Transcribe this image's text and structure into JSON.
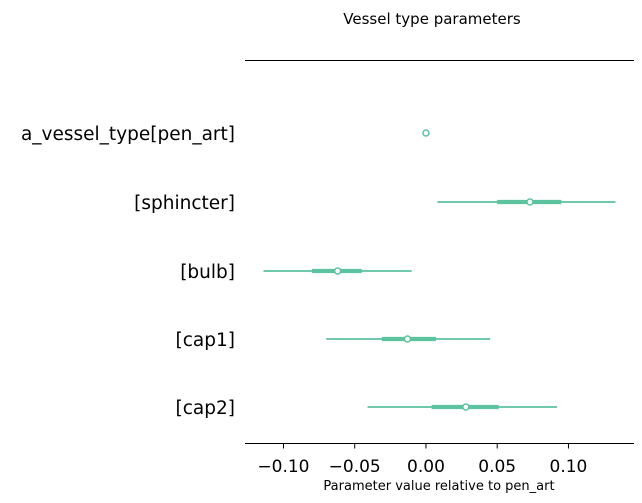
{
  "chart_data": {
    "type": "forest",
    "title": "Vessel type parameters",
    "xlabel": "Parameter value relative to pen_art",
    "ylabel": "",
    "xlim": [
      -0.127,
      0.146
    ],
    "x_ticks": [
      -0.1,
      -0.05,
      0.0,
      0.05,
      0.1
    ],
    "x_tick_labels": [
      "−0.10",
      "−0.05",
      "0.00",
      "0.05",
      "0.10"
    ],
    "color": "#5cc39e",
    "grid": false,
    "parameters": [
      {
        "label": "a_vessel_type[pen_art]",
        "mean": 0.0,
        "hdi_low": 0.0,
        "hdi_high": 0.0,
        "iqr_low": 0.0,
        "iqr_high": 0.0
      },
      {
        "label": "[sphincter]",
        "mean": 0.073,
        "hdi_low": 0.008,
        "hdi_high": 0.133,
        "iqr_low": 0.05,
        "iqr_high": 0.095
      },
      {
        "label": "[bulb]",
        "mean": -0.062,
        "hdi_low": -0.114,
        "hdi_high": -0.01,
        "iqr_low": -0.08,
        "iqr_high": -0.045
      },
      {
        "label": "[cap1]",
        "mean": -0.013,
        "hdi_low": -0.07,
        "hdi_high": 0.045,
        "iqr_low": -0.031,
        "iqr_high": 0.007
      },
      {
        "label": "[cap2]",
        "mean": 0.028,
        "hdi_low": -0.041,
        "hdi_high": 0.092,
        "iqr_low": 0.004,
        "iqr_high": 0.051
      }
    ]
  }
}
